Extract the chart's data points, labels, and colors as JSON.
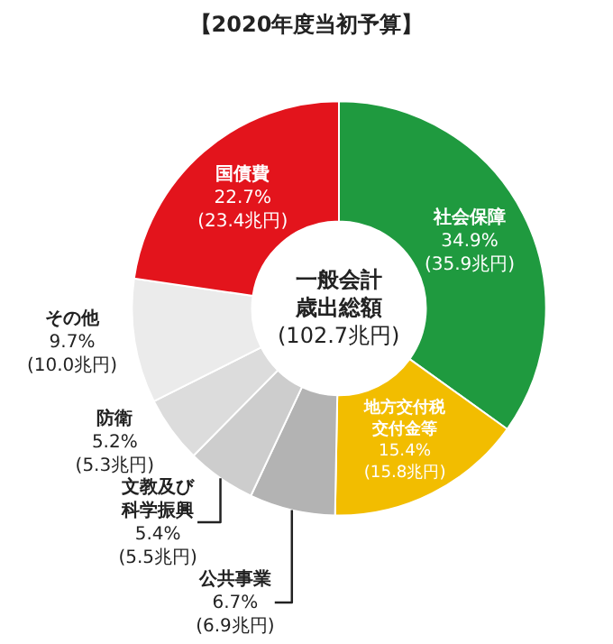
{
  "chart_data": {
    "type": "donut",
    "title": "【2020年度当初予算】",
    "categories": [
      "社会保障",
      "地方交付税交付金等",
      "公共事業",
      "文教及び科学振興",
      "防衛",
      "その他",
      "国債費"
    ],
    "values": [
      34.9,
      15.4,
      6.7,
      5.4,
      5.2,
      9.7,
      22.7
    ],
    "colors": [
      "#1f9a3f",
      "#f2bd00",
      "#b3b3b3",
      "#cdcdcd",
      "#dcdcdc",
      "#ebebeb",
      "#e3141c"
    ],
    "value_labels": [
      "34.9%\n(35.9兆円)",
      "15.4%\n(15.8兆円)",
      "6.7%\n(6.9兆円)",
      "5.4%\n(5.5兆円)",
      "5.2%\n(5.3兆円)",
      "9.7%\n(10.0兆円)",
      "22.7%\n(23.4兆円)"
    ],
    "annotations": [
      "一般会計歳出総額\n(102.7兆円)"
    ]
  }
}
